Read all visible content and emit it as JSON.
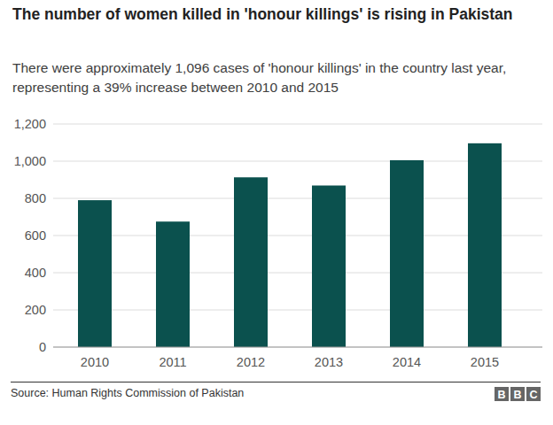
{
  "chart_data": {
    "type": "bar",
    "title": "The number of women killed in 'honour killings' is rising in Pakistan",
    "subtitle": "There were approximately 1,096 cases of 'honour killings' in the country last year, representing a 39% increase between 2010 and 2015",
    "source": "Source: Human Rights Commission of Pakistan",
    "logo": "BBC",
    "categories": [
      "2010",
      "2011",
      "2012",
      "2013",
      "2014",
      "2015"
    ],
    "values": [
      790,
      675,
      913,
      869,
      1005,
      1096
    ],
    "color": "#0b514e",
    "ylim": [
      0,
      1200
    ],
    "yticks": [
      0,
      200,
      400,
      600,
      800,
      {
        "value": 1000,
        "label": "1,000"
      },
      {
        "value": 1200,
        "label": "1,200"
      }
    ],
    "grid": true
  }
}
